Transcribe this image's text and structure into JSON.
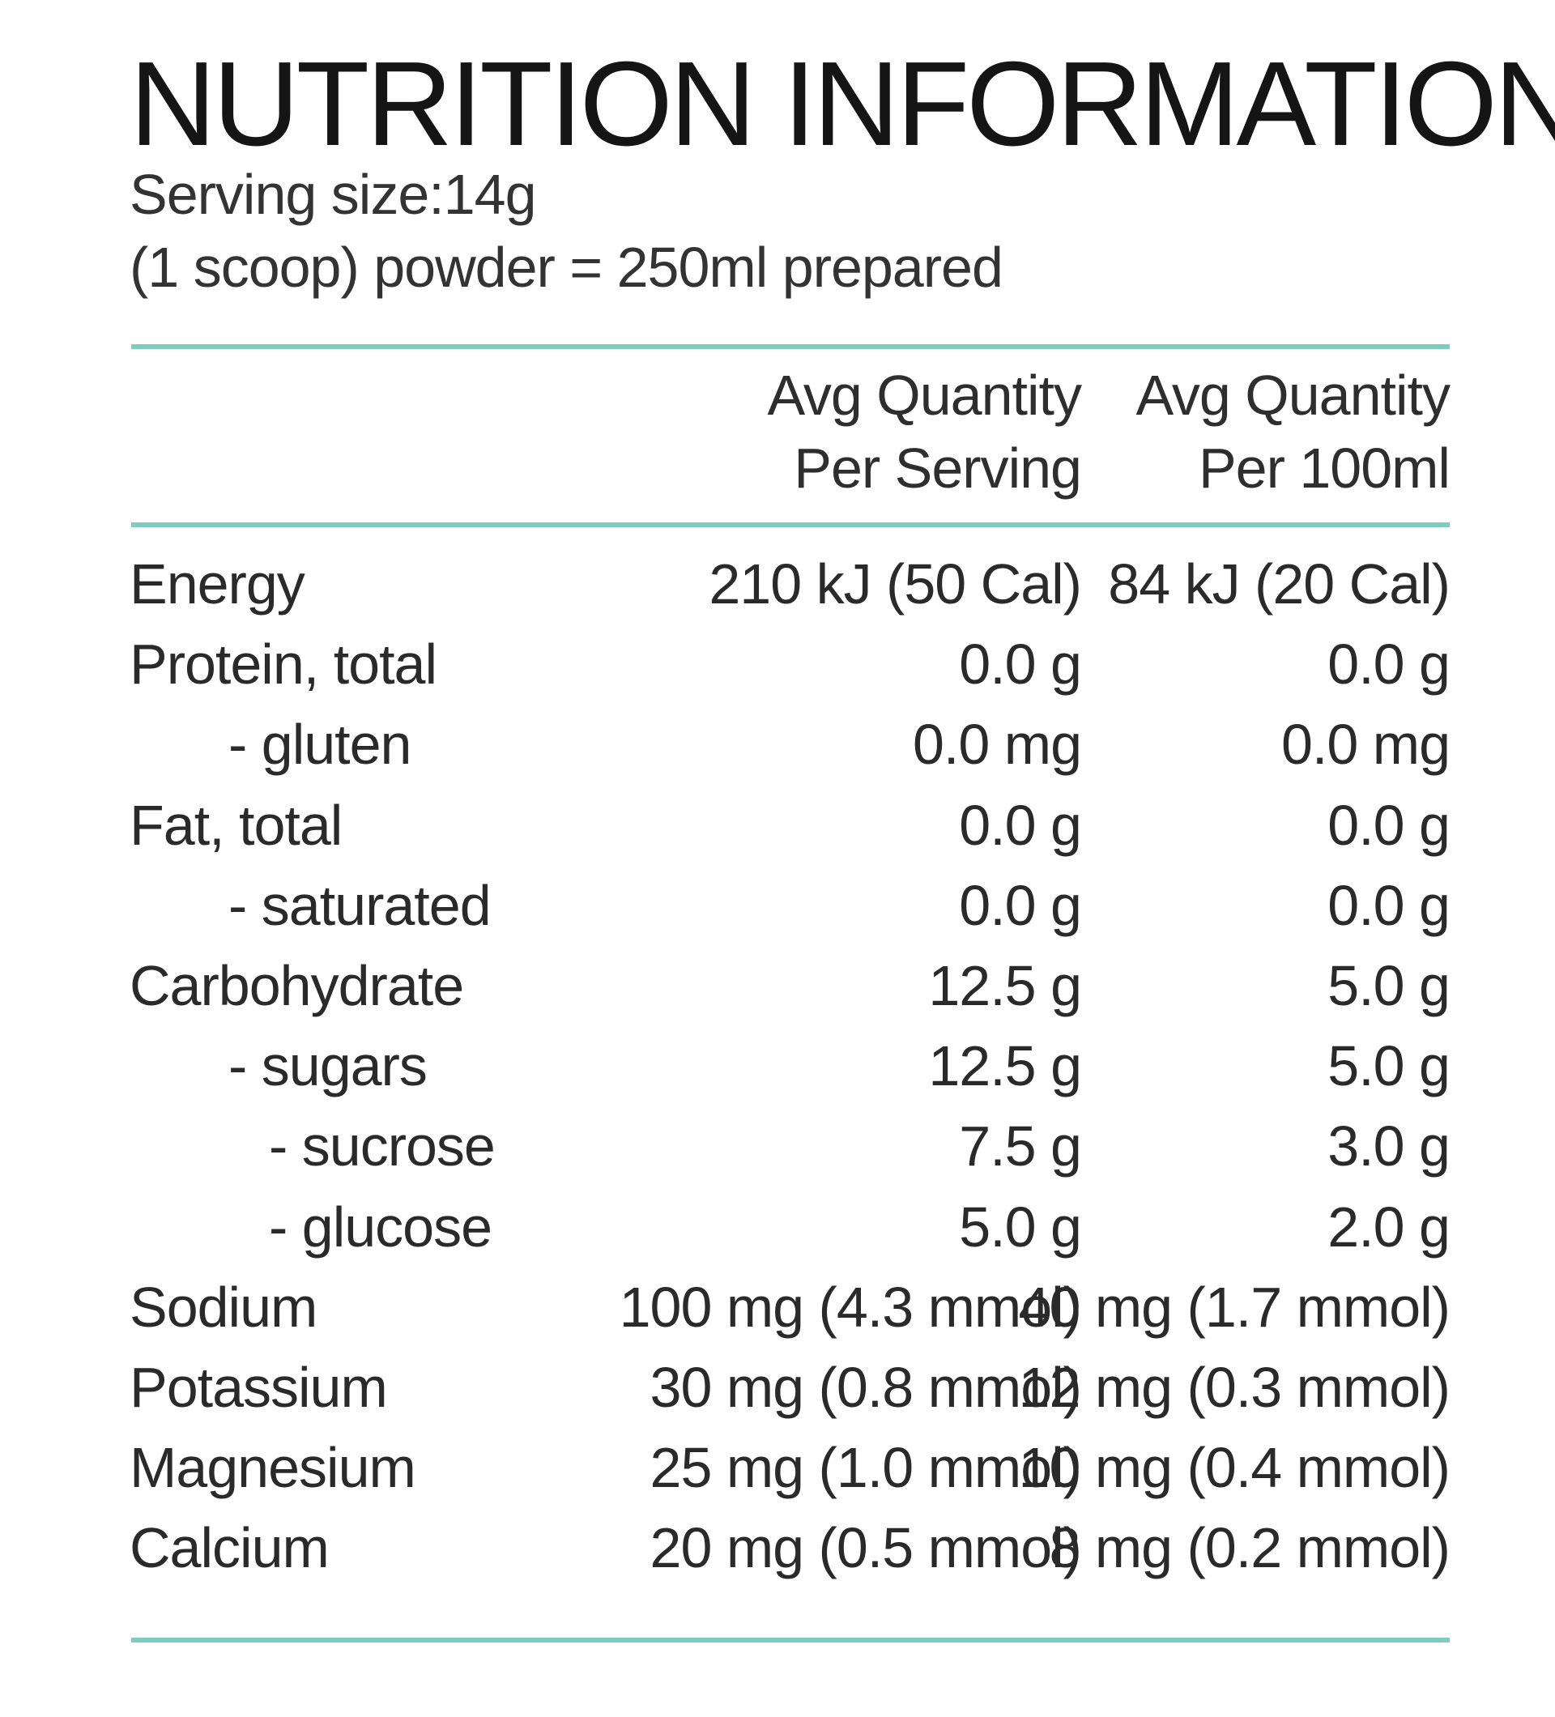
{
  "title": "NUTRITION INFORMATION",
  "serving_line1": "Serving size:14g",
  "serving_line2": "(1 scoop) powder = 250ml prepared",
  "columns": {
    "per_serving": {
      "line1": "Avg Quantity",
      "line2": "Per Serving"
    },
    "per_100ml": {
      "line1": "Avg Quantity",
      "line2": "Per 100ml"
    }
  },
  "colors": {
    "rule": "#7ecbbf",
    "text": "#1e1e1e"
  },
  "rows": [
    {
      "name": "Energy",
      "indent": 0,
      "per_serving": "210 kJ (50 Cal)",
      "per_100ml": "84 kJ (20 Cal)"
    },
    {
      "name": "Protein, total",
      "indent": 0,
      "per_serving": "0.0 g",
      "per_100ml": "0.0 g"
    },
    {
      "name": "- gluten",
      "indent": 1,
      "per_serving": "0.0 mg",
      "per_100ml": "0.0 mg"
    },
    {
      "name": "Fat, total",
      "indent": 0,
      "per_serving": "0.0 g",
      "per_100ml": "0.0 g"
    },
    {
      "name": "- saturated",
      "indent": 1,
      "per_serving": "0.0 g",
      "per_100ml": "0.0 g"
    },
    {
      "name": "Carbohydrate",
      "indent": 0,
      "per_serving": "12.5 g",
      "per_100ml": "5.0 g"
    },
    {
      "name": "- sugars",
      "indent": 1,
      "per_serving": "12.5 g",
      "per_100ml": "5.0 g"
    },
    {
      "name": "- sucrose",
      "indent": 2,
      "per_serving": "7.5 g",
      "per_100ml": "3.0 g"
    },
    {
      "name": "- glucose",
      "indent": 2,
      "per_serving": "5.0 g",
      "per_100ml": "2.0 g"
    },
    {
      "name": "Sodium",
      "indent": 0,
      "per_serving": "100 mg (4.3 mmol)",
      "per_100ml": "40 mg (1.7 mmol)"
    },
    {
      "name": "Potassium",
      "indent": 0,
      "per_serving": "30 mg (0.8 mmol)",
      "per_100ml": "12 mg (0.3 mmol)"
    },
    {
      "name": "Magnesium",
      "indent": 0,
      "per_serving": "25 mg (1.0 mmol)",
      "per_100ml": "10 mg (0.4 mmol)"
    },
    {
      "name": "Calcium",
      "indent": 0,
      "per_serving": "20 mg (0.5 mmol)",
      "per_100ml": "8 mg (0.2 mmol)"
    }
  ]
}
